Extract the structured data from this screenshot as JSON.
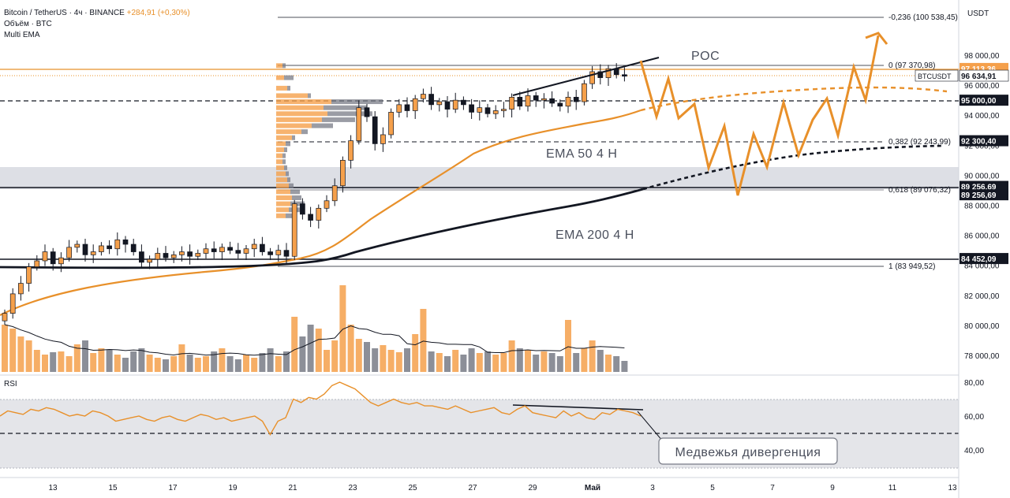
{
  "header": {
    "symbol": "Bitcoin / TetherUS · 4ч · BINANCE",
    "change": "+284,91 (+0,30%)",
    "volume_label": "Объём · BTC",
    "indicator_label": "Multi EMA"
  },
  "rsi_panel": {
    "title": "RSI"
  },
  "currency": "USDT",
  "annotations": {
    "poc": "POC",
    "ema50": "EMA 50 4 H",
    "ema200": "EMA 200 4 H",
    "divergence": "Медвежья дивергенция"
  },
  "price_labels": [
    {
      "value": "97 113,36",
      "price": 97113,
      "bg": "#f5a04b",
      "fg": "#ffffff"
    },
    {
      "value": "96 634,91",
      "price": 96634,
      "bg": "#ffffff",
      "fg": "#131722",
      "tag": "BTCUSDT"
    },
    {
      "value": "95 000,00",
      "price": 95000,
      "bg": "#131722",
      "fg": "#ffffff"
    },
    {
      "value": "92 300,40",
      "price": 92300,
      "bg": "#131722",
      "fg": "#ffffff"
    },
    {
      "value": "89 256,69",
      "price": 89256,
      "bg": "#131722",
      "fg": "#ffffff"
    },
    {
      "value": "89 256,69",
      "price": 88700,
      "bg": "#131722",
      "fg": "#ffffff"
    },
    {
      "value": "84 452,09",
      "price": 84452,
      "bg": "#131722",
      "fg": "#ffffff"
    }
  ],
  "fib_levels": [
    {
      "label": "-0,236 (100 538,45)",
      "price": 100538
    },
    {
      "label": "0 (97 370,98)",
      "price": 97370
    },
    {
      "label": "0,382 (92 243,99)",
      "price": 92244
    },
    {
      "label": "0,618 (89 076,32)",
      "price": 89076
    },
    {
      "label": "1 (83 949,52)",
      "price": 83949
    }
  ],
  "colors": {
    "up": "#f5a04b",
    "down": "#787b86",
    "ema50": "#e8902a",
    "ema200": "#131722",
    "projection": "#e8902a",
    "zone": "#d1d4dc"
  },
  "chart_data": [
    {
      "type": "candlestick",
      "title": "Bitcoin / TetherUS · 4ч · BINANCE",
      "y_axis_ticks": [
        "98 000,00",
        "96 000,00",
        "94 000,00",
        "92 000,00",
        "90 000,00",
        "88 000,00",
        "86 000,00",
        "84 000,00",
        "82 000,00",
        "80 000,00",
        "78 000,00"
      ],
      "y_tick_values": [
        98000,
        96000,
        94000,
        92000,
        90000,
        88000,
        86000,
        84000,
        82000,
        80000,
        78000
      ],
      "x_axis_ticks": [
        "13",
        "15",
        "17",
        "19",
        "21",
        "23",
        "25",
        "27",
        "29",
        "Май",
        "3",
        "5",
        "7",
        "9",
        "11",
        "13"
      ],
      "ema50_last": 94300,
      "ema200_last": 89200,
      "series_close": [
        80800,
        82100,
        82800,
        83900,
        84300,
        84900,
        84100,
        84500,
        85200,
        85400,
        84700,
        84900,
        85300,
        85100,
        85700,
        85400,
        84900,
        84200,
        84400,
        84800,
        84500,
        84700,
        84900,
        84600,
        84800,
        85100,
        84900,
        85200,
        85000,
        84800,
        85100,
        85400,
        84900,
        84700,
        85000,
        84600,
        88100,
        87400,
        87000,
        87800,
        88300,
        89300,
        91000,
        92300,
        94500,
        93900,
        92100,
        92700,
        94200,
        94700,
        94300,
        95100,
        95400,
        94700,
        94900,
        94400,
        95000,
        94700,
        94200,
        94500,
        94100,
        94300,
        94400,
        95200,
        94600,
        95300,
        95000,
        95100,
        94800,
        94600,
        95200,
        94900,
        96100,
        96900,
        96500,
        97100,
        96700,
        96600
      ]
    },
    {
      "type": "line",
      "title": "RSI",
      "y_axis_ticks": [
        "80,00",
        "60,00",
        "40,00"
      ],
      "y_tick_values": [
        80,
        60,
        40
      ],
      "band": [
        30,
        70
      ]
    }
  ]
}
